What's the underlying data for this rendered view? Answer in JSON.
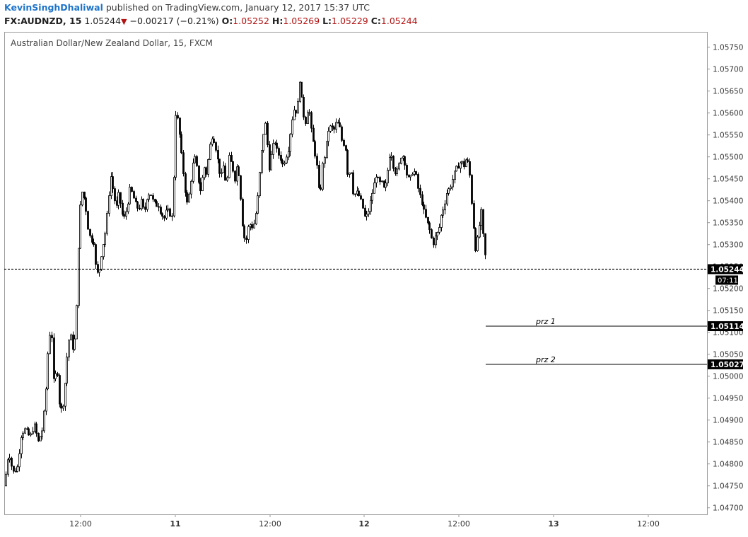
{
  "header": {
    "author": "KevinSinghDhaliwal",
    "published_text": "published on TradingView.com, January 12, 2017 15:37 UTC",
    "symbol": "FX:AUDNZD, 15",
    "last": "1.05244",
    "change": "−0.00217 (−0.21%)",
    "o_label": "O:",
    "o_value": "1.05252",
    "h_label": "H:",
    "h_value": "1.05269",
    "l_label": "L:",
    "l_value": "1.05229",
    "c_label": "C:",
    "c_value": "1.05244"
  },
  "chart_data": {
    "type": "candlestick",
    "title": "Australian Dollar/New Zealand Dollar, 15, FXCM",
    "y_axis": {
      "range": [
        1.04685,
        1.05785
      ],
      "ticks": [
        "1.05750",
        "1.05700",
        "1.05650",
        "1.05600",
        "1.05550",
        "1.05500",
        "1.05450",
        "1.05400",
        "1.05350",
        "1.05300",
        "1.05250",
        "1.05200",
        "1.05150",
        "1.05100",
        "1.05050",
        "1.05000",
        "1.04950",
        "1.04900",
        "1.04850",
        "1.04800",
        "1.04750",
        "1.04700"
      ]
    },
    "x_axis": {
      "ticks": [
        "12:00",
        "11",
        "12:00",
        "12",
        "12:00",
        "13",
        "12:00"
      ]
    },
    "close_path": [
      [
        0,
        1.0475
      ],
      [
        6,
        1.0483
      ],
      [
        12,
        1.0478
      ],
      [
        18,
        1.0479
      ],
      [
        24,
        1.0487
      ],
      [
        30,
        1.0488
      ],
      [
        36,
        1.0486
      ],
      [
        42,
        1.0489
      ],
      [
        48,
        1.0485
      ],
      [
        54,
        1.0488
      ],
      [
        58,
        1.0495
      ],
      [
        62,
        1.0507
      ],
      [
        66,
        1.0512
      ],
      [
        70,
        1.0497
      ],
      [
        74,
        1.0503
      ],
      [
        78,
        1.0493
      ],
      [
        82,
        1.0492
      ],
      [
        86,
        1.0499
      ],
      [
        90,
        1.0508
      ],
      [
        94,
        1.0509
      ],
      [
        98,
        1.0505
      ],
      [
        102,
        1.0516
      ],
      [
        106,
        1.0537
      ],
      [
        110,
        1.0542
      ],
      [
        114,
        1.054
      ],
      [
        118,
        1.0534
      ],
      [
        122,
        1.0531
      ],
      [
        126,
        1.0531
      ],
      [
        130,
        1.0523
      ],
      [
        134,
        1.0524
      ],
      [
        138,
        1.0529
      ],
      [
        142,
        1.0532
      ],
      [
        146,
        1.0538
      ],
      [
        150,
        1.0546
      ],
      [
        154,
        1.0542
      ],
      [
        158,
        1.0538
      ],
      [
        162,
        1.0542
      ],
      [
        166,
        1.0537
      ],
      [
        170,
        1.0536
      ],
      [
        174,
        1.0539
      ],
      [
        178,
        1.0543
      ],
      [
        182,
        1.0541
      ],
      [
        186,
        1.0539
      ],
      [
        190,
        1.0538
      ],
      [
        194,
        1.054
      ],
      [
        198,
        1.0537
      ],
      [
        202,
        1.0541
      ],
      [
        206,
        1.0542
      ],
      [
        210,
        1.054
      ],
      [
        214,
        1.0539
      ],
      [
        218,
        1.0539
      ],
      [
        222,
        1.0537
      ],
      [
        226,
        1.0536
      ],
      [
        230,
        1.0538
      ],
      [
        234,
        1.0537
      ],
      [
        238,
        1.0536
      ],
      [
        242,
        1.056
      ],
      [
        246,
        1.0558
      ],
      [
        250,
        1.0551
      ],
      [
        254,
        1.0545
      ],
      [
        258,
        1.0539
      ],
      [
        262,
        1.0542
      ],
      [
        266,
        1.0548
      ],
      [
        270,
        1.055
      ],
      [
        274,
        1.0545
      ],
      [
        278,
        1.0542
      ],
      [
        282,
        1.0548
      ],
      [
        286,
        1.0546
      ],
      [
        290,
        1.0552
      ],
      [
        294,
        1.0555
      ],
      [
        298,
        1.0553
      ],
      [
        302,
        1.0549
      ],
      [
        306,
        1.0545
      ],
      [
        310,
        1.0548
      ],
      [
        314,
        1.0543
      ],
      [
        318,
        1.055
      ],
      [
        322,
        1.0548
      ],
      [
        326,
        1.0545
      ],
      [
        330,
        1.0549
      ],
      [
        334,
        1.0541
      ],
      [
        338,
        1.0532
      ],
      [
        342,
        1.0531
      ],
      [
        346,
        1.0535
      ],
      [
        350,
        1.0534
      ],
      [
        354,
        1.0535
      ],
      [
        358,
        1.054
      ],
      [
        362,
        1.0548
      ],
      [
        366,
        1.0555
      ],
      [
        370,
        1.0558
      ],
      [
        374,
        1.0547
      ],
      [
        378,
        1.0551
      ],
      [
        382,
        1.0554
      ],
      [
        386,
        1.0551
      ],
      [
        390,
        1.055
      ],
      [
        394,
        1.0548
      ],
      [
        398,
        1.055
      ],
      [
        402,
        1.0552
      ],
      [
        406,
        1.0558
      ],
      [
        410,
        1.0561
      ],
      [
        414,
        1.056
      ],
      [
        418,
        1.0568
      ],
      [
        422,
        1.056
      ],
      [
        426,
        1.0558
      ],
      [
        430,
        1.0562
      ],
      [
        434,
        1.0556
      ],
      [
        438,
        1.0552
      ],
      [
        442,
        1.0548
      ],
      [
        446,
        1.054
      ],
      [
        450,
        1.0548
      ],
      [
        454,
        1.0551
      ],
      [
        458,
        1.0556
      ],
      [
        462,
        1.0557
      ],
      [
        466,
        1.0556
      ],
      [
        470,
        1.0558
      ],
      [
        474,
        1.0557
      ],
      [
        478,
        1.0553
      ],
      [
        482,
        1.0553
      ],
      [
        486,
        1.0545
      ],
      [
        490,
        1.0548
      ],
      [
        494,
        1.0541
      ],
      [
        498,
        1.0542
      ],
      [
        502,
        1.0541
      ],
      [
        506,
        1.0539
      ],
      [
        510,
        1.0536
      ],
      [
        514,
        1.0537
      ],
      [
        518,
        1.054
      ],
      [
        522,
        1.0543
      ],
      [
        526,
        1.0546
      ],
      [
        530,
        1.0544
      ],
      [
        534,
        1.0544
      ],
      [
        538,
        1.0542
      ],
      [
        542,
        1.0547
      ],
      [
        546,
        1.0552
      ],
      [
        550,
        1.0548
      ],
      [
        554,
        1.0546
      ],
      [
        558,
        1.0548
      ],
      [
        562,
        1.0551
      ],
      [
        566,
        1.0549
      ],
      [
        570,
        1.0545
      ],
      [
        574,
        1.0545
      ],
      [
        578,
        1.0547
      ],
      [
        582,
        1.0546
      ],
      [
        586,
        1.0542
      ],
      [
        590,
        1.054
      ],
      [
        594,
        1.0537
      ],
      [
        598,
        1.0535
      ],
      [
        602,
        1.0533
      ],
      [
        606,
        1.053
      ],
      [
        610,
        1.0532
      ],
      [
        614,
        1.0533
      ],
      [
        618,
        1.0537
      ],
      [
        622,
        1.0539
      ],
      [
        626,
        1.0542
      ],
      [
        630,
        1.0543
      ],
      [
        634,
        1.0545
      ],
      [
        638,
        1.0547
      ],
      [
        642,
        1.0548
      ],
      [
        646,
        1.0549
      ],
      [
        650,
        1.0548
      ],
      [
        654,
        1.055
      ],
      [
        658,
        1.0546
      ],
      [
        662,
        1.0537
      ],
      [
        666,
        1.0529
      ],
      [
        670,
        1.0532
      ],
      [
        674,
        1.0538
      ],
      [
        678,
        1.053
      ],
      [
        682,
        1.0524
      ]
    ],
    "current_price": {
      "value": 1.05244,
      "label": "1.05244",
      "countdown": "07:11"
    },
    "levels": [
      {
        "name": "prz 1",
        "value": 1.05114,
        "label": "1.05114"
      },
      {
        "name": "prz 2",
        "value": 1.05027,
        "label": "1.05027"
      }
    ],
    "grid": false,
    "colors": {
      "candle": "#000000",
      "axis": "#888888",
      "level_bg": "#000000",
      "level_text": "#ffffff"
    }
  }
}
